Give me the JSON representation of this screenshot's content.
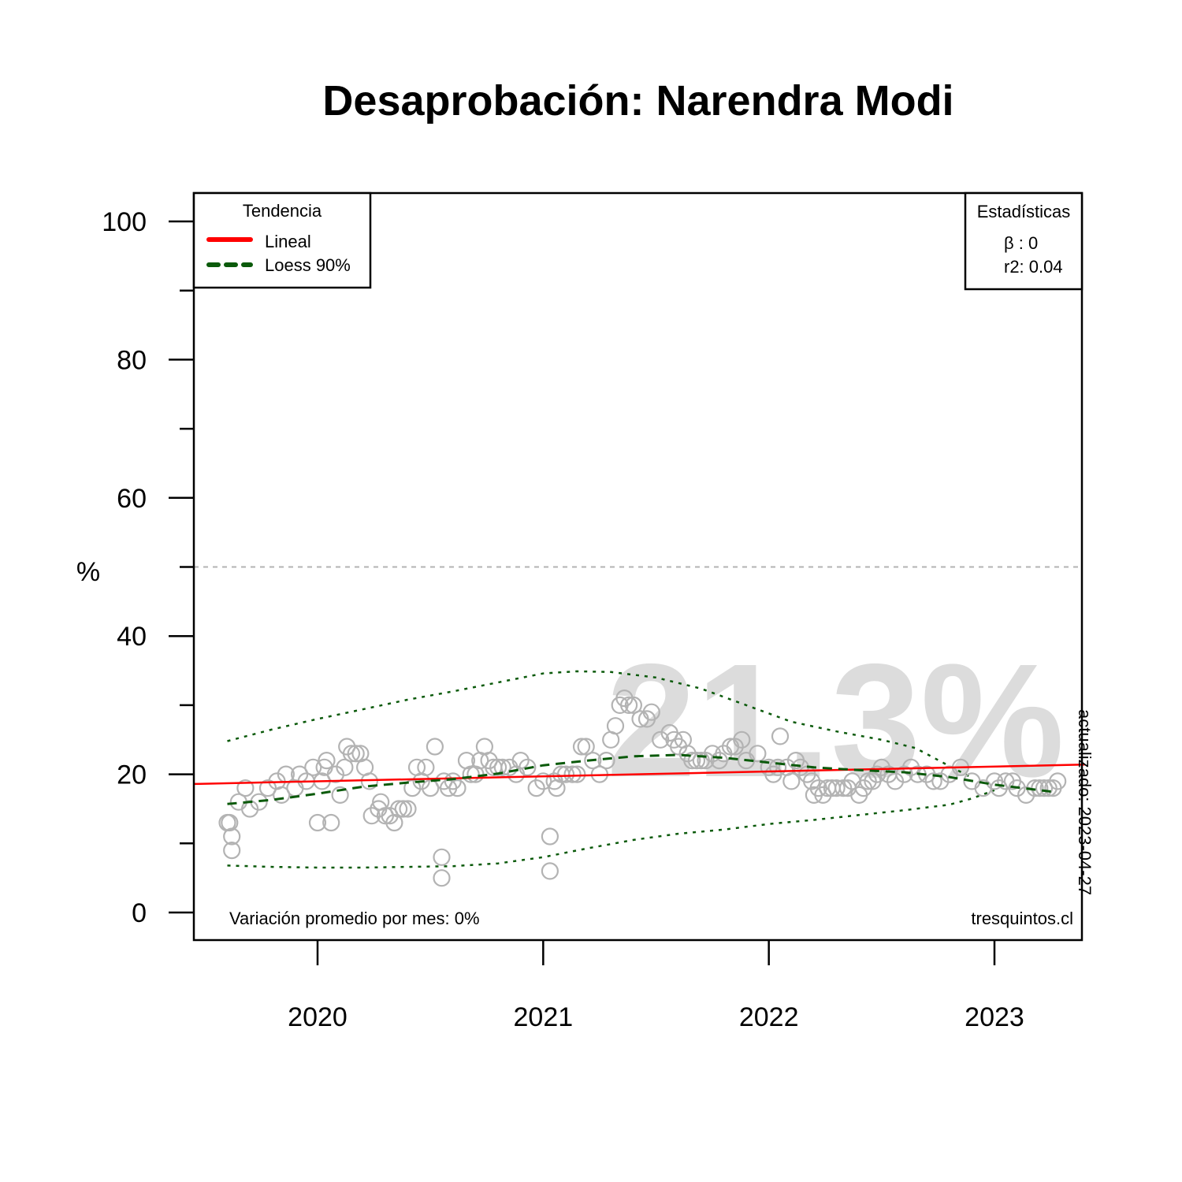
{
  "chart_data": {
    "type": "scatter",
    "title": "Desaprobación: Narendra Modi",
    "ylabel": "%",
    "xlabel": "",
    "ylim": [
      0,
      100
    ],
    "xlim": [
      2019.45,
      2023.4
    ],
    "yticks": [
      0,
      20,
      40,
      60,
      80,
      100
    ],
    "yminor_ticks": [
      10,
      30,
      50,
      70,
      90
    ],
    "xticks": [
      2020,
      2021,
      2022,
      2023
    ],
    "xtick_labels": [
      "2020",
      "2021",
      "2022",
      "2023"
    ],
    "reference_line": 50,
    "big_label": "21.3%",
    "updated_label": "actualizado: 2023-04-27",
    "monthly_variation_label": "Variación promedio por mes: 0%",
    "source_label": "tresquintos.cl",
    "legend": {
      "title": "Tendencia",
      "items": [
        {
          "label": "Lineal",
          "color": "#ff0000",
          "style": "solid"
        },
        {
          "label": "Loess 90%",
          "color": "#0b5a0b",
          "style": "dashed"
        }
      ]
    },
    "stats": {
      "title": "Estadísticas",
      "lines": [
        "β : 0",
        "r2: 0.04"
      ]
    },
    "colors": {
      "points": "#b3b3b3",
      "linear": "#ff0000",
      "loess": "#0b5a0b",
      "reference": "#b3b3b3",
      "watermark": "#dcdcdc"
    },
    "linear_trend": [
      [
        2019.45,
        18.6
      ],
      [
        2023.4,
        21.4
      ]
    ],
    "loess": [
      [
        2019.6,
        15.7
      ],
      [
        2019.8,
        16.3
      ],
      [
        2020.0,
        17.2
      ],
      [
        2020.2,
        18.2
      ],
      [
        2020.4,
        18.8
      ],
      [
        2020.6,
        19.3
      ],
      [
        2020.8,
        20.1
      ],
      [
        2021.0,
        21.3
      ],
      [
        2021.2,
        22.0
      ],
      [
        2021.4,
        22.6
      ],
      [
        2021.6,
        22.8
      ],
      [
        2021.8,
        22.4
      ],
      [
        2022.0,
        21.7
      ],
      [
        2022.2,
        21.0
      ],
      [
        2022.4,
        20.6
      ],
      [
        2022.6,
        20.3
      ],
      [
        2022.8,
        19.6
      ],
      [
        2023.0,
        18.5
      ],
      [
        2023.15,
        17.9
      ],
      [
        2023.25,
        17.5
      ]
    ],
    "upper_band": [
      [
        2019.6,
        24.8
      ],
      [
        2019.8,
        26.5
      ],
      [
        2020.0,
        28.0
      ],
      [
        2020.2,
        29.4
      ],
      [
        2020.4,
        30.8
      ],
      [
        2020.6,
        32.0
      ],
      [
        2020.8,
        33.3
      ],
      [
        2021.0,
        34.6
      ],
      [
        2021.15,
        34.9
      ],
      [
        2021.3,
        34.8
      ],
      [
        2021.5,
        34.0
      ],
      [
        2021.7,
        32.4
      ],
      [
        2021.9,
        30.0
      ],
      [
        2022.1,
        27.6
      ],
      [
        2022.3,
        26.2
      ],
      [
        2022.5,
        25.0
      ],
      [
        2022.65,
        23.8
      ],
      [
        2022.8,
        21.2
      ],
      [
        2022.9,
        19.5
      ]
    ],
    "lower_band": [
      [
        2019.6,
        6.8
      ],
      [
        2019.8,
        6.6
      ],
      [
        2020.0,
        6.5
      ],
      [
        2020.2,
        6.5
      ],
      [
        2020.4,
        6.6
      ],
      [
        2020.6,
        6.7
      ],
      [
        2020.8,
        7.1
      ],
      [
        2021.0,
        8.0
      ],
      [
        2021.2,
        9.3
      ],
      [
        2021.4,
        10.5
      ],
      [
        2021.6,
        11.4
      ],
      [
        2021.8,
        12.0
      ],
      [
        2022.0,
        12.8
      ],
      [
        2022.2,
        13.4
      ],
      [
        2022.4,
        14.1
      ],
      [
        2022.6,
        14.8
      ],
      [
        2022.8,
        15.6
      ],
      [
        2022.9,
        16.5
      ],
      [
        2023.0,
        17.7
      ]
    ],
    "points": [
      [
        2019.6,
        13
      ],
      [
        2019.61,
        13
      ],
      [
        2019.62,
        11
      ],
      [
        2019.62,
        9
      ],
      [
        2019.65,
        16
      ],
      [
        2019.68,
        18
      ],
      [
        2019.7,
        15
      ],
      [
        2019.74,
        16
      ],
      [
        2019.78,
        18
      ],
      [
        2019.82,
        19
      ],
      [
        2019.84,
        17
      ],
      [
        2019.86,
        20
      ],
      [
        2019.9,
        18
      ],
      [
        2019.92,
        20
      ],
      [
        2019.95,
        19
      ],
      [
        2019.98,
        21
      ],
      [
        2020.0,
        13
      ],
      [
        2020.02,
        19
      ],
      [
        2020.03,
        21
      ],
      [
        2020.04,
        22
      ],
      [
        2020.06,
        13
      ],
      [
        2020.08,
        20
      ],
      [
        2020.1,
        17
      ],
      [
        2020.12,
        21
      ],
      [
        2020.13,
        24
      ],
      [
        2020.15,
        23
      ],
      [
        2020.17,
        23
      ],
      [
        2020.19,
        23
      ],
      [
        2020.21,
        21
      ],
      [
        2020.23,
        19
      ],
      [
        2020.24,
        14
      ],
      [
        2020.27,
        15
      ],
      [
        2020.28,
        16
      ],
      [
        2020.3,
        14
      ],
      [
        2020.32,
        14
      ],
      [
        2020.34,
        13
      ],
      [
        2020.36,
        15
      ],
      [
        2020.38,
        15
      ],
      [
        2020.4,
        15
      ],
      [
        2020.42,
        18
      ],
      [
        2020.44,
        21
      ],
      [
        2020.46,
        19
      ],
      [
        2020.48,
        21
      ],
      [
        2020.5,
        18
      ],
      [
        2020.52,
        24
      ],
      [
        2020.55,
        8
      ],
      [
        2020.55,
        5
      ],
      [
        2020.56,
        19
      ],
      [
        2020.58,
        18
      ],
      [
        2020.6,
        19
      ],
      [
        2020.62,
        18
      ],
      [
        2020.66,
        22
      ],
      [
        2020.68,
        20
      ],
      [
        2020.7,
        20
      ],
      [
        2020.72,
        22
      ],
      [
        2020.74,
        24
      ],
      [
        2020.76,
        22
      ],
      [
        2020.78,
        21
      ],
      [
        2020.8,
        21
      ],
      [
        2020.82,
        21
      ],
      [
        2020.85,
        21
      ],
      [
        2020.88,
        20
      ],
      [
        2020.9,
        22
      ],
      [
        2020.93,
        21
      ],
      [
        2020.97,
        18
      ],
      [
        2021.0,
        19
      ],
      [
        2021.03,
        11
      ],
      [
        2021.03,
        6
      ],
      [
        2021.05,
        19
      ],
      [
        2021.06,
        18
      ],
      [
        2021.08,
        20
      ],
      [
        2021.1,
        20
      ],
      [
        2021.13,
        20
      ],
      [
        2021.15,
        20
      ],
      [
        2021.17,
        24
      ],
      [
        2021.19,
        24
      ],
      [
        2021.22,
        22
      ],
      [
        2021.25,
        20
      ],
      [
        2021.28,
        22
      ],
      [
        2021.3,
        25
      ],
      [
        2021.32,
        27
      ],
      [
        2021.34,
        30
      ],
      [
        2021.36,
        31
      ],
      [
        2021.38,
        30
      ],
      [
        2021.4,
        30
      ],
      [
        2021.43,
        28
      ],
      [
        2021.46,
        28
      ],
      [
        2021.48,
        29
      ],
      [
        2021.52,
        25
      ],
      [
        2021.56,
        26
      ],
      [
        2021.58,
        25
      ],
      [
        2021.6,
        24
      ],
      [
        2021.62,
        25
      ],
      [
        2021.64,
        23
      ],
      [
        2021.66,
        22
      ],
      [
        2021.68,
        22
      ],
      [
        2021.7,
        22
      ],
      [
        2021.72,
        22
      ],
      [
        2021.75,
        23
      ],
      [
        2021.78,
        22
      ],
      [
        2021.8,
        23
      ],
      [
        2021.83,
        24
      ],
      [
        2021.85,
        24
      ],
      [
        2021.88,
        25
      ],
      [
        2021.9,
        22
      ],
      [
        2021.95,
        23
      ],
      [
        2022.0,
        21
      ],
      [
        2022.02,
        20
      ],
      [
        2022.04,
        21
      ],
      [
        2022.05,
        25.5
      ],
      [
        2022.08,
        21
      ],
      [
        2022.1,
        19
      ],
      [
        2022.12,
        22
      ],
      [
        2022.14,
        21
      ],
      [
        2022.17,
        20
      ],
      [
        2022.19,
        19
      ],
      [
        2022.2,
        17
      ],
      [
        2022.22,
        18
      ],
      [
        2022.24,
        17
      ],
      [
        2022.26,
        18
      ],
      [
        2022.28,
        18
      ],
      [
        2022.3,
        18
      ],
      [
        2022.33,
        18
      ],
      [
        2022.35,
        18
      ],
      [
        2022.37,
        19
      ],
      [
        2022.4,
        17
      ],
      [
        2022.42,
        18
      ],
      [
        2022.44,
        19
      ],
      [
        2022.46,
        19
      ],
      [
        2022.48,
        20
      ],
      [
        2022.5,
        21
      ],
      [
        2022.53,
        20
      ],
      [
        2022.56,
        19
      ],
      [
        2022.6,
        20
      ],
      [
        2022.63,
        21
      ],
      [
        2022.66,
        20
      ],
      [
        2022.7,
        20
      ],
      [
        2022.73,
        19
      ],
      [
        2022.76,
        19
      ],
      [
        2022.8,
        20
      ],
      [
        2022.85,
        21
      ],
      [
        2022.9,
        19
      ],
      [
        2022.95,
        18
      ],
      [
        2023.0,
        19
      ],
      [
        2023.02,
        18
      ],
      [
        2023.05,
        19
      ],
      [
        2023.08,
        19
      ],
      [
        2023.1,
        18
      ],
      [
        2023.14,
        17
      ],
      [
        2023.18,
        18
      ],
      [
        2023.2,
        18
      ],
      [
        2023.22,
        18
      ],
      [
        2023.24,
        18
      ],
      [
        2023.26,
        18
      ],
      [
        2023.28,
        19
      ]
    ]
  }
}
